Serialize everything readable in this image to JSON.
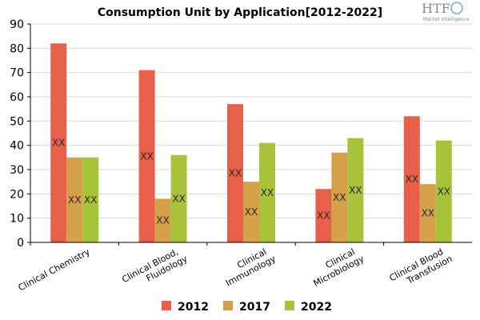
{
  "logo": {
    "text": "HTF",
    "subtext": "Market Intelligence"
  },
  "colors": {
    "2012": "#e8604a",
    "2017": "#d4a04a",
    "2022": "#a8c23a",
    "grid": "#d9d9d9",
    "axis": "#000000"
  },
  "chart_data": {
    "type": "bar",
    "title": "Consumption Unit by  Application[2012-2022]",
    "xlabel": "",
    "ylabel": "",
    "ylim": [
      0,
      90
    ],
    "yticks": [
      0,
      10,
      20,
      30,
      40,
      50,
      60,
      70,
      80,
      90
    ],
    "grid": true,
    "legend": "bottom",
    "categories": [
      [
        "Clinical Chemistry"
      ],
      [
        "Clinical Blood,",
        "Fluidology"
      ],
      [
        "Clinical",
        "Immunology"
      ],
      [
        "Clinical",
        "Microbiology"
      ],
      [
        "Clinical Blood",
        "Transfusion"
      ]
    ],
    "series": [
      {
        "name": "2012",
        "values": [
          82,
          71,
          57,
          22,
          52
        ]
      },
      {
        "name": "2017",
        "values": [
          35,
          18,
          25,
          37,
          24
        ]
      },
      {
        "name": "2022",
        "values": [
          35,
          36,
          41,
          43,
          42
        ]
      }
    ],
    "data_label": "XX"
  }
}
